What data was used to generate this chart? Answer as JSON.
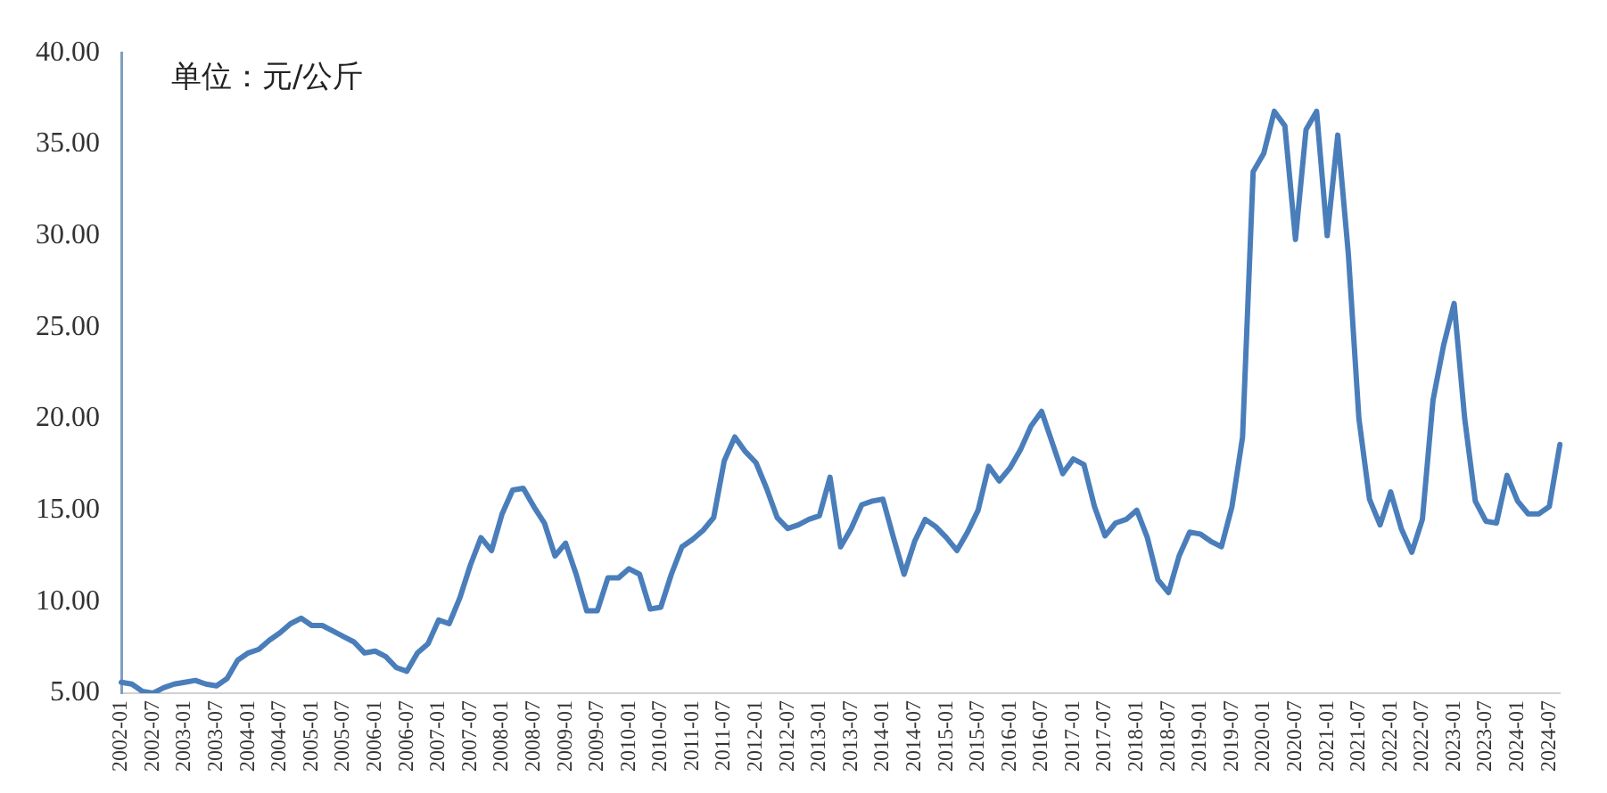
{
  "chart_data": {
    "type": "line",
    "annotations": [
      "单位：元/公斤"
    ],
    "categories": [
      "2002-01",
      null,
      null,
      "2002-07",
      null,
      null,
      "2003-01",
      null,
      null,
      "2003-07",
      null,
      null,
      "2004-01",
      null,
      null,
      "2004-07",
      null,
      null,
      "2005-01",
      null,
      null,
      "2005-07",
      null,
      null,
      "2006-01",
      null,
      null,
      "2006-07",
      null,
      null,
      "2007-01",
      null,
      null,
      "2007-07",
      null,
      null,
      "2008-01",
      null,
      null,
      "2008-07",
      null,
      null,
      "2009-01",
      null,
      null,
      "2009-07",
      null,
      null,
      "2010-01",
      null,
      null,
      "2010-07",
      null,
      null,
      "2011-01",
      null,
      null,
      "2011-07",
      null,
      null,
      "2012-01",
      null,
      null,
      "2012-07",
      null,
      null,
      "2013-01",
      null,
      null,
      "2013-07",
      null,
      null,
      "2014-01",
      null,
      null,
      "2014-07",
      null,
      null,
      "2015-01",
      null,
      null,
      "2015-07",
      null,
      null,
      "2016-01",
      null,
      null,
      "2016-07",
      null,
      null,
      "2017-01",
      null,
      null,
      "2017-07",
      null,
      null,
      "2018-01",
      null,
      null,
      "2018-07",
      null,
      null,
      "2019-01",
      null,
      null,
      "2019-07",
      null,
      null,
      "2020-01",
      null,
      null,
      "2020-07",
      null,
      null,
      "2021-01",
      null,
      null,
      "2021-07",
      null,
      null,
      "2022-01",
      null,
      null,
      "2022-07",
      null,
      null,
      "2023-01",
      null,
      null,
      "2023-07",
      null,
      null,
      "2024-01",
      null,
      null,
      "2024-07",
      null
    ],
    "series": [
      {
        "color": "#4a7ebb",
        "values": [
          5.6,
          5.5,
          5.1,
          5.0,
          5.3,
          5.5,
          5.6,
          5.7,
          5.5,
          5.4,
          5.8,
          6.8,
          7.2,
          7.4,
          7.9,
          8.3,
          8.8,
          9.1,
          8.7,
          8.7,
          8.4,
          8.1,
          7.8,
          7.2,
          7.3,
          7.0,
          6.4,
          6.2,
          7.2,
          7.7,
          9.0,
          8.8,
          10.2,
          12.0,
          13.5,
          12.8,
          14.8,
          16.1,
          16.2,
          15.2,
          14.3,
          12.5,
          13.2,
          11.5,
          9.5,
          9.5,
          11.3,
          11.3,
          11.8,
          11.5,
          9.6,
          9.7,
          11.5,
          13.0,
          13.4,
          13.9,
          14.6,
          17.7,
          19.0,
          18.2,
          17.6,
          16.2,
          14.6,
          14.0,
          14.2,
          14.5,
          14.7,
          16.8,
          13.0,
          14.0,
          15.3,
          15.5,
          15.6,
          13.5,
          11.5,
          13.3,
          14.5,
          14.1,
          13.5,
          12.8,
          13.8,
          15.0,
          17.4,
          16.6,
          17.3,
          18.3,
          19.6,
          20.4,
          18.7,
          17.0,
          17.8,
          17.5,
          15.2,
          13.6,
          14.3,
          14.5,
          15.0,
          13.5,
          11.2,
          10.5,
          12.5,
          13.8,
          13.7,
          13.3,
          13.0,
          15.2,
          19.0,
          33.5,
          34.5,
          36.8,
          36.0,
          29.8,
          35.8,
          36.8,
          30.0,
          35.5,
          29.0,
          20.0,
          15.6,
          14.2,
          16.0,
          14.0,
          12.7,
          14.5,
          21.0,
          24.0,
          26.3,
          20.0,
          15.5,
          14.4,
          14.3,
          16.9,
          15.5,
          14.8,
          14.8,
          15.2,
          18.6
        ]
      }
    ],
    "ylim": [
      5,
      40
    ],
    "yticks": [
      {
        "value": 5,
        "label": "5.00"
      },
      {
        "value": 10,
        "label": "10.00"
      },
      {
        "value": 15,
        "label": "15.00"
      },
      {
        "value": 20,
        "label": "20.00"
      },
      {
        "value": 25,
        "label": "25.00"
      },
      {
        "value": 30,
        "label": "30.00"
      },
      {
        "value": 35,
        "label": "35.00"
      },
      {
        "value": 40,
        "label": "40.00"
      }
    ],
    "grid": false,
    "legend": false,
    "marker": "none",
    "line_style": "solid"
  }
}
